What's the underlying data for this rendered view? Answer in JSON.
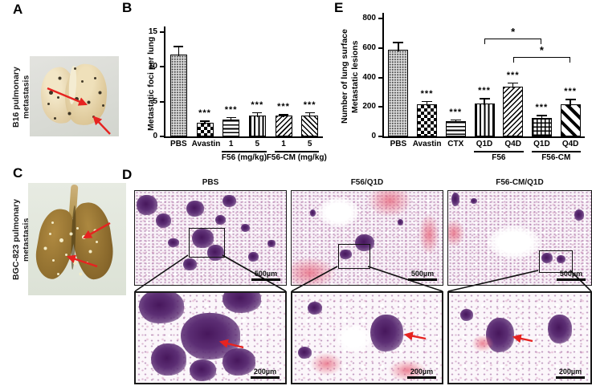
{
  "panels": {
    "A": {
      "letter": "A",
      "side_label": "B16 pulmonary metastasis"
    },
    "B": {
      "letter": "B"
    },
    "C": {
      "letter": "C",
      "side_label": "BGC-823 pulmonary metastasis"
    },
    "D": {
      "letter": "D",
      "columns": [
        {
          "title": "PBS"
        },
        {
          "title": "F56/Q1D"
        },
        {
          "title": "F56-CM/Q1D"
        }
      ],
      "scale_top": "500µm",
      "scale_bottom": "200µm"
    },
    "E": {
      "letter": "E"
    }
  },
  "chart_data": [
    {
      "id": "B",
      "type": "bar",
      "title": "",
      "ylabel": [
        "Metastatic foci per lung"
      ],
      "xlabel": "",
      "ylim": [
        0,
        15
      ],
      "yticks": [
        0,
        5,
        10,
        15
      ],
      "grid": false,
      "categories": [
        "PBS",
        "Avastin",
        "1",
        "5",
        "1",
        "5"
      ],
      "values": [
        11.8,
        2.0,
        2.4,
        3.0,
        3.0,
        3.0
      ],
      "errors": [
        1.2,
        0.3,
        0.4,
        0.5,
        0.2,
        0.5
      ],
      "significance": [
        "",
        "***",
        "***",
        "***",
        "***",
        "***"
      ],
      "patterns": [
        "stipple",
        "checker",
        "hlines",
        "vlines",
        "diag1",
        "diag2"
      ],
      "groups": [
        {
          "label": "F56 (mg/kg)",
          "from": 2,
          "to": 3
        },
        {
          "label": "F56-CM (mg/kg)",
          "from": 4,
          "to": 5
        }
      ],
      "brackets": []
    },
    {
      "id": "E",
      "type": "bar",
      "title": "",
      "ylabel": [
        "Number of lung surface",
        "Metastatic lesions"
      ],
      "xlabel": "",
      "ylim": [
        0,
        800
      ],
      "yticks": [
        0,
        200,
        400,
        600,
        800
      ],
      "grid": false,
      "categories": [
        "PBS",
        "Avastin",
        "CTX",
        "Q1D",
        "Q4D",
        "Q1D",
        "Q4D"
      ],
      "values": [
        590,
        220,
        105,
        225,
        335,
        125,
        220
      ],
      "errors": [
        50,
        20,
        12,
        35,
        30,
        20,
        35
      ],
      "significance": [
        "",
        "***",
        "***",
        "***",
        "***",
        "***",
        "***"
      ],
      "patterns": [
        "stipple",
        "checker",
        "hlines",
        "vlines",
        "diag1",
        "grid",
        "diagwide"
      ],
      "groups": [
        {
          "label": "F56",
          "from": 3,
          "to": 4
        },
        {
          "label": "F56-CM",
          "from": 5,
          "to": 6
        }
      ],
      "brackets": [
        {
          "from": 3,
          "to": 5,
          "label": "*",
          "level": 665
        },
        {
          "from": 4,
          "to": 6,
          "label": "*",
          "level": 540
        }
      ]
    }
  ]
}
